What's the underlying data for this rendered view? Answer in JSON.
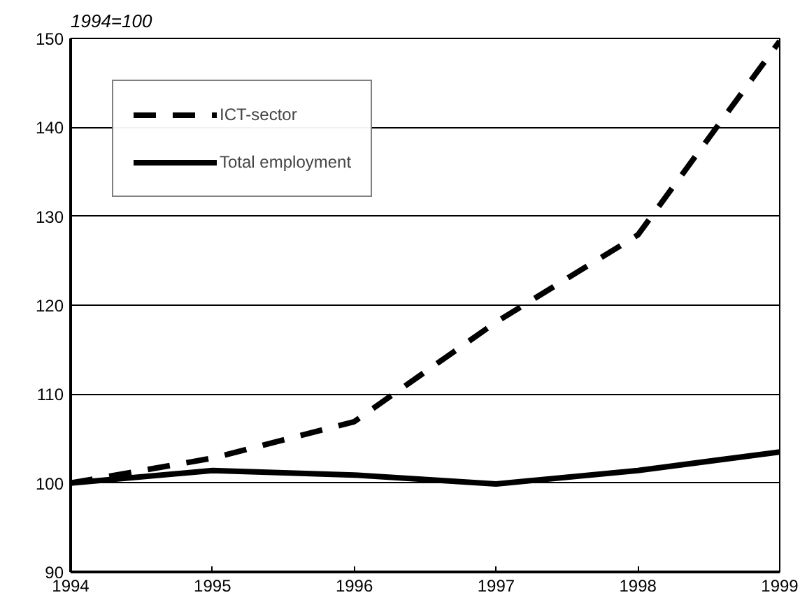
{
  "chart_data": {
    "type": "line",
    "subtitle": "1994=100",
    "x": [
      1994,
      1995,
      1996,
      1997,
      1998,
      1999
    ],
    "series": [
      {
        "name": "ICT-sector",
        "color": "#000000",
        "line_style": "dashed",
        "values": [
          100,
          102.8,
          106.9,
          118.1,
          127.9,
          149.7
        ]
      },
      {
        "name": "Total employment",
        "color": "#000000",
        "line_style": "solid",
        "values": [
          100,
          101.4,
          100.9,
          99.9,
          101.4,
          103.5
        ]
      }
    ],
    "xlim": [
      1994,
      1999
    ],
    "xticks": [
      1994,
      1995,
      1996,
      1997,
      1998,
      1999
    ],
    "ylim": [
      90,
      150
    ],
    "yticks": [
      90,
      100,
      110,
      120,
      130,
      140,
      150
    ],
    "grid": "y",
    "legend": "top left",
    "marker": "none"
  }
}
